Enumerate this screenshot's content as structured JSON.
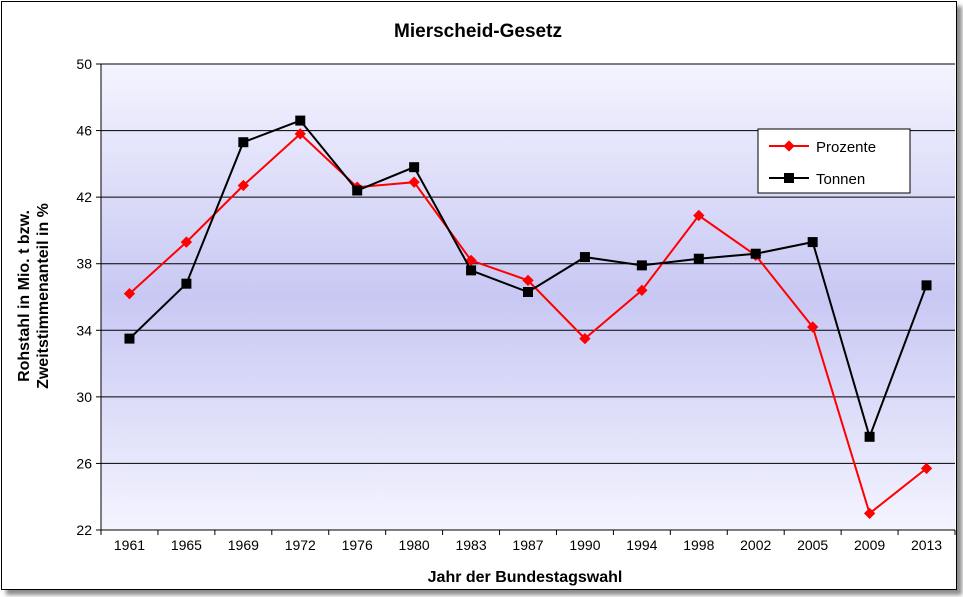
{
  "chart_data": {
    "type": "line",
    "title": "Mierscheid-Gesetz",
    "xlabel": "Jahr der Bundestagswahl",
    "ylabel_line1": "Rohstahl in Mio. t bzw.",
    "ylabel_line2": "Zweitstimmenanteil in %",
    "categories": [
      "1961",
      "1965",
      "1969",
      "1972",
      "1976",
      "1980",
      "1983",
      "1987",
      "1990",
      "1994",
      "1998",
      "2002",
      "2005",
      "2009",
      "2013"
    ],
    "ylim": [
      22,
      50
    ],
    "yticks": [
      22,
      26,
      30,
      34,
      38,
      42,
      46,
      50
    ],
    "grid": true,
    "legend_position": "top-right",
    "series": [
      {
        "name": "Prozente",
        "color": "#ff0000",
        "marker": "diamond",
        "values": [
          36.2,
          39.3,
          42.7,
          45.8,
          42.6,
          42.9,
          38.2,
          37.0,
          33.5,
          36.4,
          40.9,
          38.5,
          34.2,
          23.0,
          25.7
        ]
      },
      {
        "name": "Tonnen",
        "color": "#000000",
        "marker": "square",
        "values": [
          33.5,
          36.8,
          45.3,
          46.6,
          42.4,
          43.8,
          37.6,
          36.3,
          38.4,
          37.9,
          38.3,
          38.6,
          39.3,
          27.6,
          36.7
        ]
      }
    ]
  },
  "colors": {
    "plot_bg_edge": "#f4f4ff",
    "plot_bg_center": "#c8c8f4"
  }
}
